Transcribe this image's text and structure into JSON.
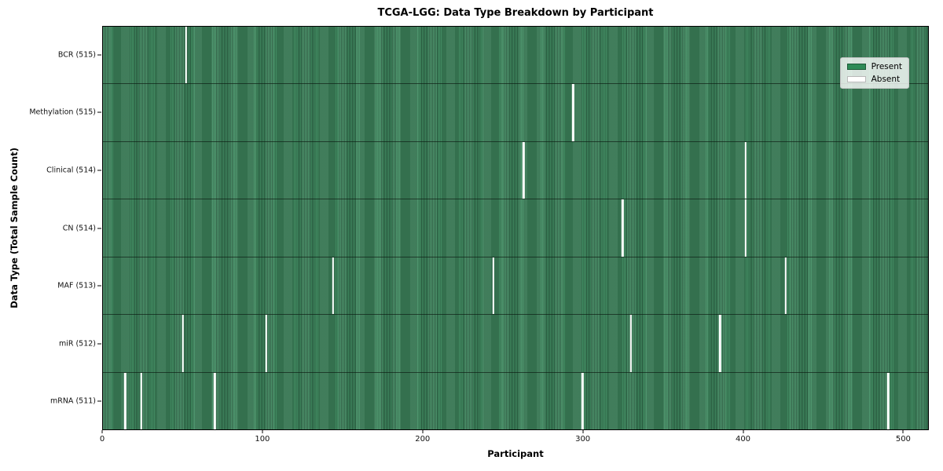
{
  "title": "TCGA-LGG: Data Type Breakdown by Participant",
  "xlabel": "Participant",
  "ylabel": "Data Type (Total Sample Count)",
  "legend": {
    "present_label": "Present",
    "absent_label": "Absent"
  },
  "colors": {
    "present": "#2e8b57",
    "absent": "#ffffff",
    "stripe_light": "#449166",
    "stripe_dark": "#295b3f"
  },
  "chart_data": {
    "type": "heatmap",
    "title": "TCGA-LGG: Data Type Breakdown by Participant",
    "xlabel": "Participant",
    "ylabel": "Data Type (Total Sample Count)",
    "x_ticks": [
      0,
      100,
      200,
      300,
      400,
      500
    ],
    "x_range": [
      0,
      516
    ],
    "total_participants": 516,
    "grid": false,
    "legend_entries": [
      "Present",
      "Absent"
    ],
    "legend_position": "upper right",
    "rows": [
      {
        "label": "BCR (515)",
        "data_type": "BCR",
        "present_count": 515,
        "absent_participants": [
          52
        ]
      },
      {
        "label": "Methylation (515)",
        "data_type": "Methylation",
        "present_count": 515,
        "absent_participants": [
          294
        ]
      },
      {
        "label": "Clinical (514)",
        "data_type": "Clinical",
        "present_count": 514,
        "absent_participants": [
          263,
          402
        ]
      },
      {
        "label": "CN (514)",
        "data_type": "CN",
        "present_count": 514,
        "absent_participants": [
          325,
          402
        ]
      },
      {
        "label": "MAF (513)",
        "data_type": "MAF",
        "present_count": 513,
        "absent_participants": [
          144,
          244,
          427
        ]
      },
      {
        "label": "miR (512)",
        "data_type": "miR",
        "present_count": 512,
        "absent_participants": [
          50,
          102,
          330,
          386
        ]
      },
      {
        "label": "mRNA (511)",
        "data_type": "mRNA",
        "present_count": 511,
        "absent_participants": [
          14,
          24,
          70,
          300,
          491
        ]
      }
    ]
  }
}
